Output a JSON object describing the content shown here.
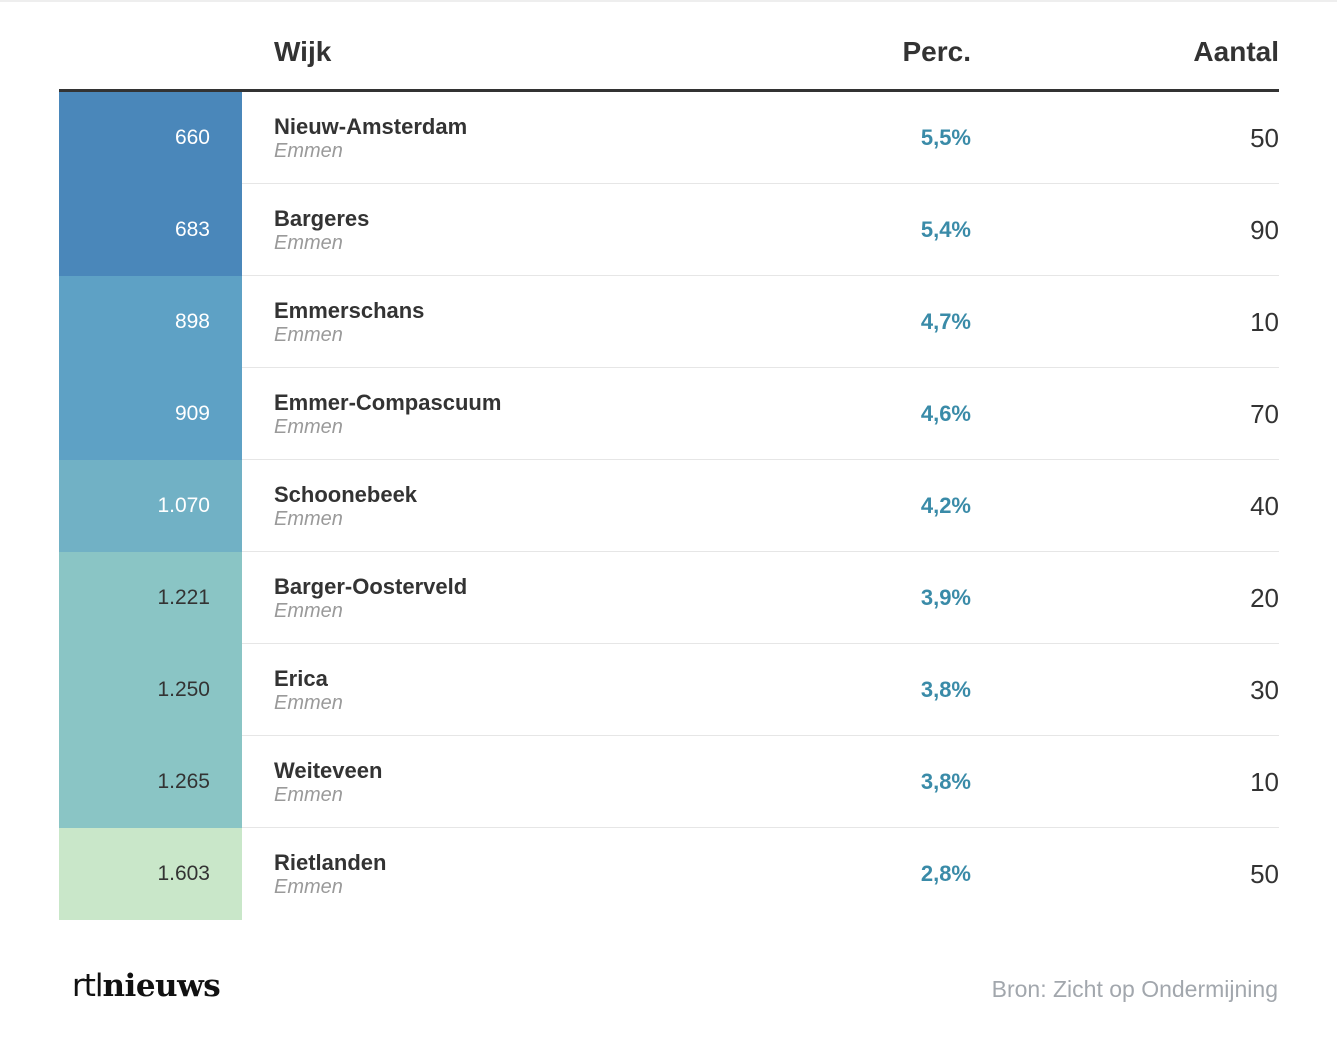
{
  "header": {
    "wijk_label": "Wijk",
    "perc_label": "Perc.",
    "aantal_label": "Aantal"
  },
  "rows": [
    {
      "rank": "660",
      "name": "Nieuw-Amsterdam",
      "municipality": "Emmen",
      "perc": "5,5%",
      "aantal": "50",
      "color": "#4a87ba",
      "text_color": "#ffffff"
    },
    {
      "rank": "683",
      "name": "Bargeres",
      "municipality": "Emmen",
      "perc": "5,4%",
      "aantal": "90",
      "color": "#4a87ba",
      "text_color": "#ffffff"
    },
    {
      "rank": "898",
      "name": "Emmerschans",
      "municipality": "Emmen",
      "perc": "4,7%",
      "aantal": "10",
      "color": "#5ea1c5",
      "text_color": "#ffffff"
    },
    {
      "rank": "909",
      "name": "Emmer-Compascuum",
      "municipality": "Emmen",
      "perc": "4,6%",
      "aantal": "70",
      "color": "#5ea1c5",
      "text_color": "#ffffff"
    },
    {
      "rank": "1.070",
      "name": "Schoonebeek",
      "municipality": "Emmen",
      "perc": "4,2%",
      "aantal": "40",
      "color": "#71b1c5",
      "text_color": "#ffffff"
    },
    {
      "rank": "1.221",
      "name": "Barger-Oosterveld",
      "municipality": "Emmen",
      "perc": "3,9%",
      "aantal": "20",
      "color": "#8ac5c5",
      "text_color": "#333333"
    },
    {
      "rank": "1.250",
      "name": "Erica",
      "municipality": "Emmen",
      "perc": "3,8%",
      "aantal": "30",
      "color": "#8ac5c5",
      "text_color": "#333333"
    },
    {
      "rank": "1.265",
      "name": "Weiteveen",
      "municipality": "Emmen",
      "perc": "3,8%",
      "aantal": "10",
      "color": "#8ac5c5",
      "text_color": "#333333"
    },
    {
      "rank": "1.603",
      "name": "Rietlanden",
      "municipality": "Emmen",
      "perc": "2,8%",
      "aantal": "50",
      "color": "#c9e7c9",
      "text_color": "#333333"
    }
  ],
  "chart_data": {
    "type": "table",
    "columns": [
      "",
      "Wijk",
      "Perc.",
      "Aantal"
    ],
    "rows": [
      [
        "660",
        "Nieuw-Amsterdam",
        "5,5%",
        50
      ],
      [
        "683",
        "Bargeres",
        "5,4%",
        90
      ],
      [
        "898",
        "Emmerschans",
        "4,7%",
        10
      ],
      [
        "909",
        "Emmer-Compascuum",
        "4,6%",
        70
      ],
      [
        "1.070",
        "Schoonebeek",
        "4,2%",
        40
      ],
      [
        "1.221",
        "Barger-Oosterveld",
        "3,9%",
        20
      ],
      [
        "1.250",
        "Erica",
        "3,8%",
        30
      ],
      [
        "1.265",
        "Weiteveen",
        "3,8%",
        10
      ],
      [
        "1.603",
        "Rietlanden",
        "2,8%",
        50
      ]
    ]
  },
  "footer": {
    "logo_rtl": "rtl",
    "logo_nieuws": "nieuws",
    "source": "Bron: Zicht op Ondermijning"
  }
}
